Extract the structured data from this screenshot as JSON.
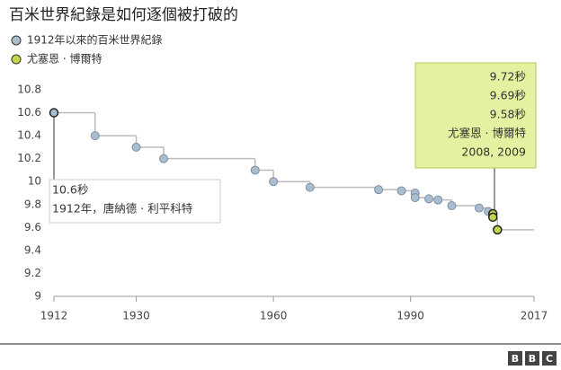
{
  "chart_data": {
    "type": "step-scatter",
    "title": "百米世界紀錄是如何逐個被打破的",
    "series": [
      {
        "name": "1912年以來的百米世界紀錄",
        "color": "#a9bdd1",
        "x": [
          1912,
          1921,
          1930,
          1936,
          1956,
          1960,
          1968,
          1983,
          1988,
          1991,
          1991,
          1994,
          1996,
          1999,
          2005,
          2007
        ],
        "values": [
          10.6,
          10.4,
          10.3,
          10.2,
          10.1,
          10.0,
          9.95,
          9.93,
          9.92,
          9.9,
          9.86,
          9.85,
          9.84,
          9.79,
          9.77,
          9.74
        ]
      },
      {
        "name": "尤塞恩 · 博爾特",
        "color": "#c5d54a",
        "x": [
          2008,
          2008,
          2009
        ],
        "values": [
          9.72,
          9.69,
          9.58
        ]
      }
    ],
    "xlim": [
      1912,
      2017
    ],
    "xticks": [
      1912,
      1930,
      1960,
      1990,
      2017
    ],
    "ylim": [
      9,
      10.8
    ],
    "yticks": [
      9,
      9.2,
      9.4,
      9.6,
      9.8,
      10,
      10.2,
      10.4,
      10.6,
      10.8
    ],
    "annotations": [
      {
        "lines": [
          "10.6秒",
          "1912年，唐納德 · 利平科特"
        ]
      },
      {
        "lines": [
          "9.72秒",
          "9.69秒",
          "9.58秒",
          "尤塞恩 · 博爾特",
          "2008, 2009"
        ]
      }
    ]
  },
  "logo": [
    "B",
    "B",
    "C"
  ]
}
